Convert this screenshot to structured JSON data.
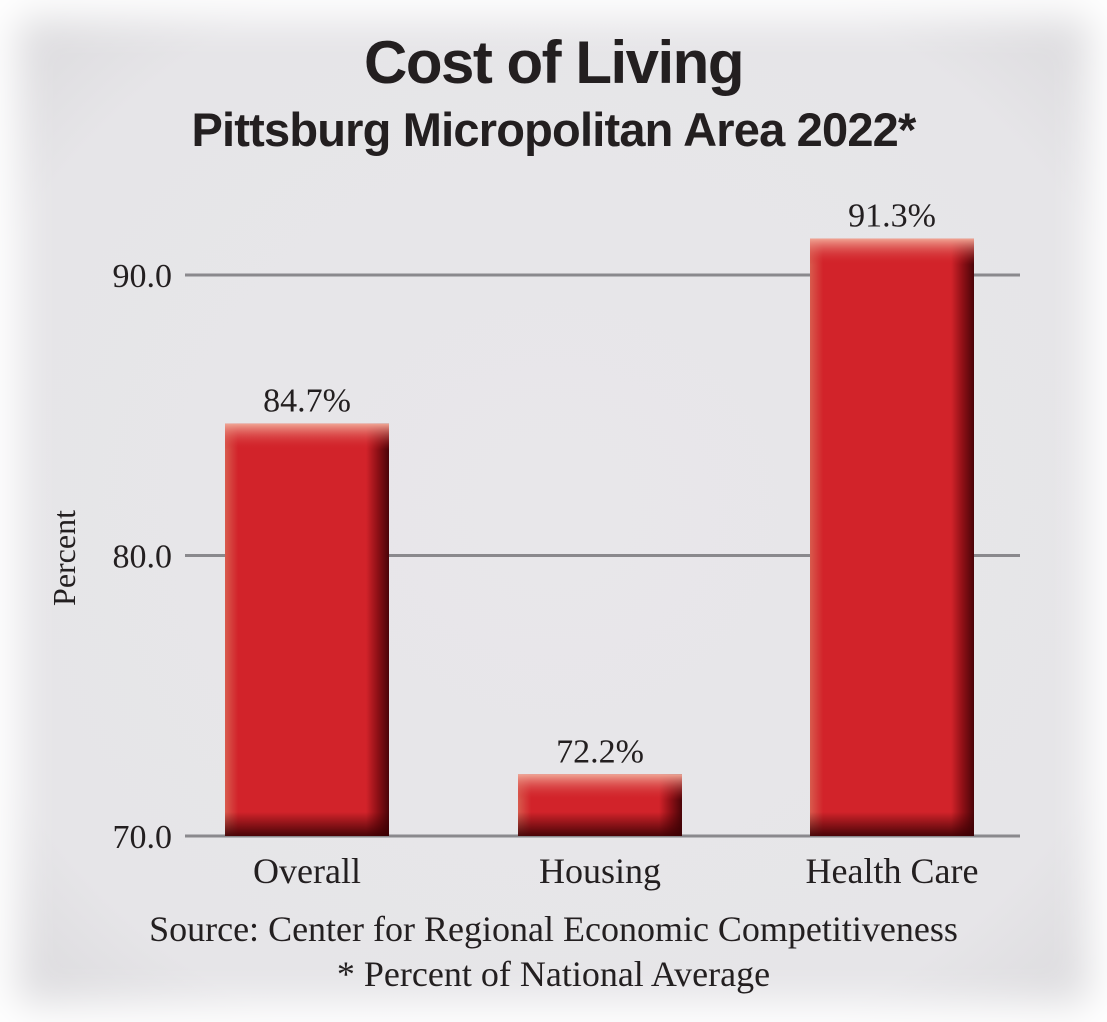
{
  "chart_data": {
    "type": "bar",
    "title": "Cost of Living",
    "subtitle": "Pittsburg Micropolitan Area 2022*",
    "ylabel": "Percent",
    "xlabel": "",
    "categories": [
      "Overall",
      "Housing",
      "Health Care"
    ],
    "values": [
      84.7,
      72.2,
      91.3
    ],
    "value_labels": [
      "84.7%",
      "72.2%",
      "91.3%"
    ],
    "ylim": [
      70,
      92
    ],
    "yticks": [
      70,
      80,
      90
    ],
    "ytick_labels": [
      "70.0",
      "80.0",
      "90.0"
    ],
    "grid": true,
    "legend": "none",
    "bar_color": "#d2232a",
    "source": "Source: Center for Regional Economic Competitiveness",
    "note": "* Percent of National Average"
  }
}
